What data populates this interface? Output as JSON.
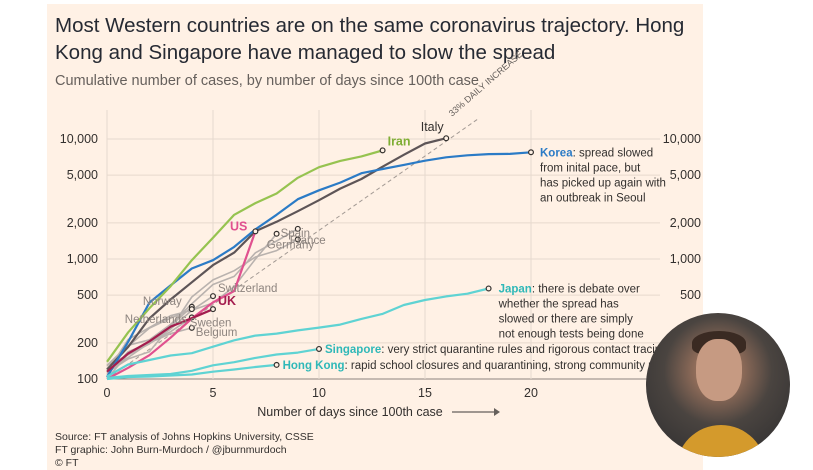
{
  "title": "Most Western countries are on the same coronavirus trajectory. Hong Kong and Singapore have managed to slow the spread",
  "subtitle": "Cumulative number of cases, by number of days since 100th case",
  "source_lines": [
    "Source: FT analysis of Johns Hopkins University, CSSE",
    "FT graphic: John Burn-Murdoch / @jburnmurdoch",
    "© FT"
  ],
  "chart_data": {
    "type": "line",
    "xlabel": "Number of days since 100th case",
    "ylabel": "",
    "x_ticks": [
      0,
      5,
      10,
      15,
      20
    ],
    "xlim": [
      0,
      22
    ],
    "y_scale": "log",
    "ylim": [
      100,
      14000
    ],
    "y_ticks": [
      100,
      200,
      500,
      1000,
      2000,
      5000,
      10000
    ],
    "y_tick_labels": [
      "100",
      "200",
      "500",
      "1,000",
      "2,000",
      "5,000",
      "10,000"
    ],
    "grid": true,
    "reference_line": {
      "label": "33% DAILY INCREASE",
      "y0": 100,
      "daily_growth": 0.33
    },
    "series": [
      {
        "name": "Italy",
        "color": "#5e5557",
        "points": [
          [
            0,
            120
          ],
          [
            1,
            185
          ],
          [
            2,
            320
          ],
          [
            3,
            460
          ],
          [
            4,
            640
          ],
          [
            5,
            890
          ],
          [
            6,
            1130
          ],
          [
            7,
            1700
          ],
          [
            8,
            2040
          ],
          [
            9,
            2500
          ],
          [
            10,
            3090
          ],
          [
            11,
            3860
          ],
          [
            12,
            4640
          ],
          [
            13,
            5880
          ],
          [
            14,
            7380
          ],
          [
            15,
            9170
          ],
          [
            16,
            10150
          ]
        ]
      },
      {
        "name": "Korea",
        "color": "#2b7bc6",
        "points": [
          [
            0,
            104
          ],
          [
            1,
            204
          ],
          [
            2,
            433
          ],
          [
            3,
            602
          ],
          [
            4,
            833
          ],
          [
            5,
            977
          ],
          [
            6,
            1261
          ],
          [
            7,
            1766
          ],
          [
            8,
            2337
          ],
          [
            9,
            3150
          ],
          [
            10,
            3736
          ],
          [
            11,
            4335
          ],
          [
            12,
            5186
          ],
          [
            13,
            5621
          ],
          [
            14,
            6088
          ],
          [
            15,
            6593
          ],
          [
            16,
            7041
          ],
          [
            17,
            7313
          ],
          [
            18,
            7478
          ],
          [
            19,
            7513
          ],
          [
            20,
            7755
          ]
        ]
      },
      {
        "name": "Iran",
        "color": "#96c350",
        "points": [
          [
            0,
            139
          ],
          [
            1,
            245
          ],
          [
            2,
            388
          ],
          [
            3,
            593
          ],
          [
            4,
            978
          ],
          [
            5,
            1501
          ],
          [
            6,
            2336
          ],
          [
            7,
            2922
          ],
          [
            8,
            3513
          ],
          [
            9,
            4747
          ],
          [
            10,
            5823
          ],
          [
            11,
            6566
          ],
          [
            12,
            7161
          ],
          [
            13,
            8042
          ]
        ]
      },
      {
        "name": "US",
        "color": "#e0518f",
        "points": [
          [
            0,
            100
          ],
          [
            1,
            124
          ],
          [
            2,
            158
          ],
          [
            3,
            221
          ],
          [
            4,
            319
          ],
          [
            5,
            435
          ],
          [
            6,
            541
          ],
          [
            7,
            1700
          ]
        ]
      },
      {
        "name": "Spain",
        "color": "#b9b2ae",
        "points": [
          [
            0,
            114
          ],
          [
            1,
            151
          ],
          [
            2,
            200
          ],
          [
            3,
            261
          ],
          [
            4,
            374
          ],
          [
            5,
            430
          ],
          [
            6,
            589
          ],
          [
            7,
            999
          ],
          [
            8,
            1622
          ]
        ]
      },
      {
        "name": "France",
        "color": "#b9b2ae",
        "points": [
          [
            0,
            130
          ],
          [
            1,
            191
          ],
          [
            2,
            212
          ],
          [
            3,
            285
          ],
          [
            4,
            423
          ],
          [
            5,
            613
          ],
          [
            6,
            716
          ],
          [
            7,
            1126
          ],
          [
            8,
            1412
          ],
          [
            9,
            1784
          ]
        ]
      },
      {
        "name": "Germany",
        "color": "#b9b2ae",
        "points": [
          [
            0,
            130
          ],
          [
            1,
            159
          ],
          [
            2,
            196
          ],
          [
            3,
            262
          ],
          [
            4,
            482
          ],
          [
            5,
            670
          ],
          [
            6,
            799
          ],
          [
            7,
            1040
          ],
          [
            8,
            1176
          ],
          [
            9,
            1457
          ]
        ]
      },
      {
        "name": "Switzerland",
        "color": "#b9b2ae",
        "points": [
          [
            0,
            114
          ],
          [
            1,
            214
          ],
          [
            2,
            268
          ],
          [
            3,
            337
          ],
          [
            4,
            374
          ],
          [
            5,
            491
          ]
        ]
      },
      {
        "name": "Norway",
        "color": "#b9b2ae",
        "points": [
          [
            0,
            113
          ],
          [
            1,
            147
          ],
          [
            2,
            169
          ],
          [
            3,
            277
          ],
          [
            4,
            400
          ]
        ]
      },
      {
        "name": "Netherlands",
        "color": "#b9b2ae",
        "points": [
          [
            0,
            128
          ],
          [
            1,
            188
          ],
          [
            2,
            265
          ],
          [
            3,
            321
          ],
          [
            4,
            382
          ]
        ]
      },
      {
        "name": "Sweden",
        "color": "#b9b2ae",
        "points": [
          [
            0,
            101
          ],
          [
            1,
            161
          ],
          [
            2,
            203
          ],
          [
            3,
            248
          ],
          [
            4,
            326
          ]
        ]
      },
      {
        "name": "Belgium",
        "color": "#b9b2ae",
        "points": [
          [
            0,
            109
          ],
          [
            1,
            169
          ],
          [
            2,
            200
          ],
          [
            3,
            239
          ],
          [
            4,
            267
          ]
        ]
      },
      {
        "name": "UK",
        "color": "#a31d4e",
        "points": [
          [
            0,
            115
          ],
          [
            1,
            163
          ],
          [
            2,
            206
          ],
          [
            3,
            273
          ],
          [
            4,
            321
          ],
          [
            5,
            382
          ]
        ]
      },
      {
        "name": "Japan",
        "color": "#5fd3d3",
        "points": [
          [
            0,
            105
          ],
          [
            1,
            132
          ],
          [
            2,
            144
          ],
          [
            3,
            157
          ],
          [
            4,
            164
          ],
          [
            5,
            186
          ],
          [
            6,
            210
          ],
          [
            7,
            230
          ],
          [
            8,
            239
          ],
          [
            9,
            254
          ],
          [
            10,
            268
          ],
          [
            11,
            284
          ],
          [
            12,
            317
          ],
          [
            13,
            349
          ],
          [
            14,
            414
          ],
          [
            15,
            455
          ],
          [
            16,
            488
          ],
          [
            17,
            514
          ],
          [
            18,
            568
          ]
        ]
      },
      {
        "name": "Singapore",
        "color": "#5fd3d3",
        "points": [
          [
            0,
            102
          ],
          [
            1,
            106
          ],
          [
            2,
            108
          ],
          [
            3,
            110
          ],
          [
            4,
            117
          ],
          [
            5,
            130
          ],
          [
            6,
            138
          ],
          [
            7,
            150
          ],
          [
            8,
            160
          ],
          [
            9,
            166
          ],
          [
            10,
            178
          ]
        ]
      },
      {
        "name": "Hong Kong",
        "color": "#5fd3d3",
        "points": [
          [
            0,
            100
          ],
          [
            1,
            104
          ],
          [
            2,
            105
          ],
          [
            3,
            107
          ],
          [
            4,
            109
          ],
          [
            5,
            115
          ],
          [
            6,
            120
          ],
          [
            7,
            126
          ],
          [
            8,
            131
          ]
        ]
      }
    ],
    "annotations": [
      {
        "series": "Korea",
        "label": "Korea",
        "text": ": spread slowed from inital pace, but has picked up again with an outbreak in Seoul"
      },
      {
        "series": "Japan",
        "label": "Japan",
        "text": ": there is debate over whether the spread has slowed or there are simply not enough tests being done"
      },
      {
        "series": "Singapore",
        "label": "Singapore",
        "text": ": very strict quarantine rules and rigorous contact tracing"
      },
      {
        "series": "Hong Kong",
        "label": "Hong Kong",
        "text": ": rapid school closures and quarantining, strong community response"
      }
    ]
  }
}
